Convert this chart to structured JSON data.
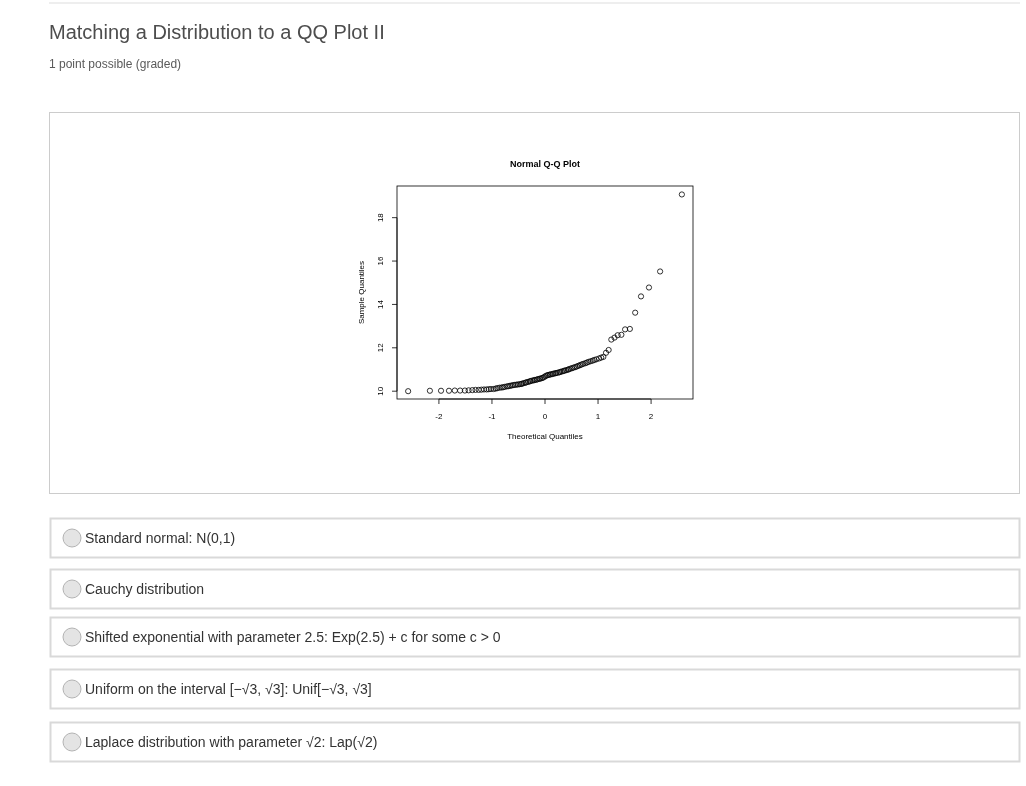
{
  "chart_data": {
    "type": "scatter",
    "title": "Normal Q-Q Plot",
    "xlabel": "Theoretical Quantiles",
    "ylabel": "Sample Quantiles",
    "xlim": [
      -2.79,
      2.79
    ],
    "ylim": [
      9.64,
      19.46
    ],
    "xticks": [
      -2,
      -1,
      0,
      1,
      2
    ],
    "yticks": [
      10,
      12,
      14,
      16,
      18
    ],
    "marker": "circle",
    "color": "#000000",
    "x": [
      -2.58,
      -2.17,
      -1.96,
      -1.81,
      -1.7,
      -1.6,
      -1.51,
      -1.44,
      -1.37,
      -1.31,
      -1.25,
      -1.2,
      -1.15,
      -1.1,
      -1.06,
      -1.02,
      -0.97,
      -0.93,
      -0.9,
      -0.86,
      -0.82,
      -0.79,
      -0.76,
      -0.72,
      -0.69,
      -0.66,
      -0.63,
      -0.6,
      -0.57,
      -0.54,
      -0.51,
      -0.48,
      -0.45,
      -0.43,
      -0.4,
      -0.37,
      -0.35,
      -0.32,
      -0.29,
      -0.27,
      -0.24,
      -0.21,
      -0.19,
      -0.16,
      -0.14,
      -0.11,
      -0.09,
      -0.06,
      -0.04,
      -0.01,
      0.01,
      0.04,
      0.06,
      0.09,
      0.11,
      0.14,
      0.16,
      0.19,
      0.21,
      0.24,
      0.27,
      0.29,
      0.32,
      0.35,
      0.37,
      0.4,
      0.43,
      0.45,
      0.48,
      0.51,
      0.54,
      0.57,
      0.6,
      0.63,
      0.66,
      0.69,
      0.72,
      0.76,
      0.79,
      0.82,
      0.86,
      0.9,
      0.93,
      0.97,
      1.02,
      1.06,
      1.1,
      1.15,
      1.2,
      1.25,
      1.31,
      1.37,
      1.44,
      1.51,
      1.6,
      1.7,
      1.81,
      1.96,
      2.17,
      2.58
    ],
    "values": [
      10.0,
      10.02,
      10.02,
      10.02,
      10.03,
      10.03,
      10.03,
      10.04,
      10.05,
      10.06,
      10.06,
      10.07,
      10.08,
      10.08,
      10.09,
      10.1,
      10.1,
      10.12,
      10.14,
      10.16,
      10.17,
      10.18,
      10.2,
      10.22,
      10.23,
      10.25,
      10.26,
      10.28,
      10.29,
      10.3,
      10.31,
      10.32,
      10.33,
      10.35,
      10.37,
      10.39,
      10.41,
      10.43,
      10.45,
      10.47,
      10.49,
      10.5,
      10.52,
      10.53,
      10.55,
      10.57,
      10.58,
      10.6,
      10.62,
      10.66,
      10.7,
      10.73,
      10.75,
      10.76,
      10.78,
      10.79,
      10.81,
      10.82,
      10.84,
      10.85,
      10.87,
      10.89,
      10.91,
      10.93,
      10.95,
      10.97,
      10.99,
      11.01,
      11.04,
      11.06,
      11.09,
      11.11,
      11.14,
      11.17,
      11.2,
      11.23,
      11.26,
      11.29,
      11.32,
      11.35,
      11.38,
      11.41,
      11.44,
      11.47,
      11.51,
      11.55,
      11.58,
      11.77,
      11.9,
      12.38,
      12.47,
      12.58,
      12.6,
      12.85,
      12.87,
      13.62,
      14.37,
      14.78,
      15.52,
      19.07
    ],
    "annotations": [
      "Matching a Distribution to a QQ Plot II",
      "1 point possible (graded)",
      "Standard normal: N(0,1)",
      "Cauchy distribution",
      "Shifted exponential with parameter 2.5: Exp(2.5) + c for some c > 0",
      "Uniform on the interval [−√3, √3]: Unif[−√3, √3]",
      "Laplace distribution with parameter √2: Lap(√2)"
    ]
  }
}
